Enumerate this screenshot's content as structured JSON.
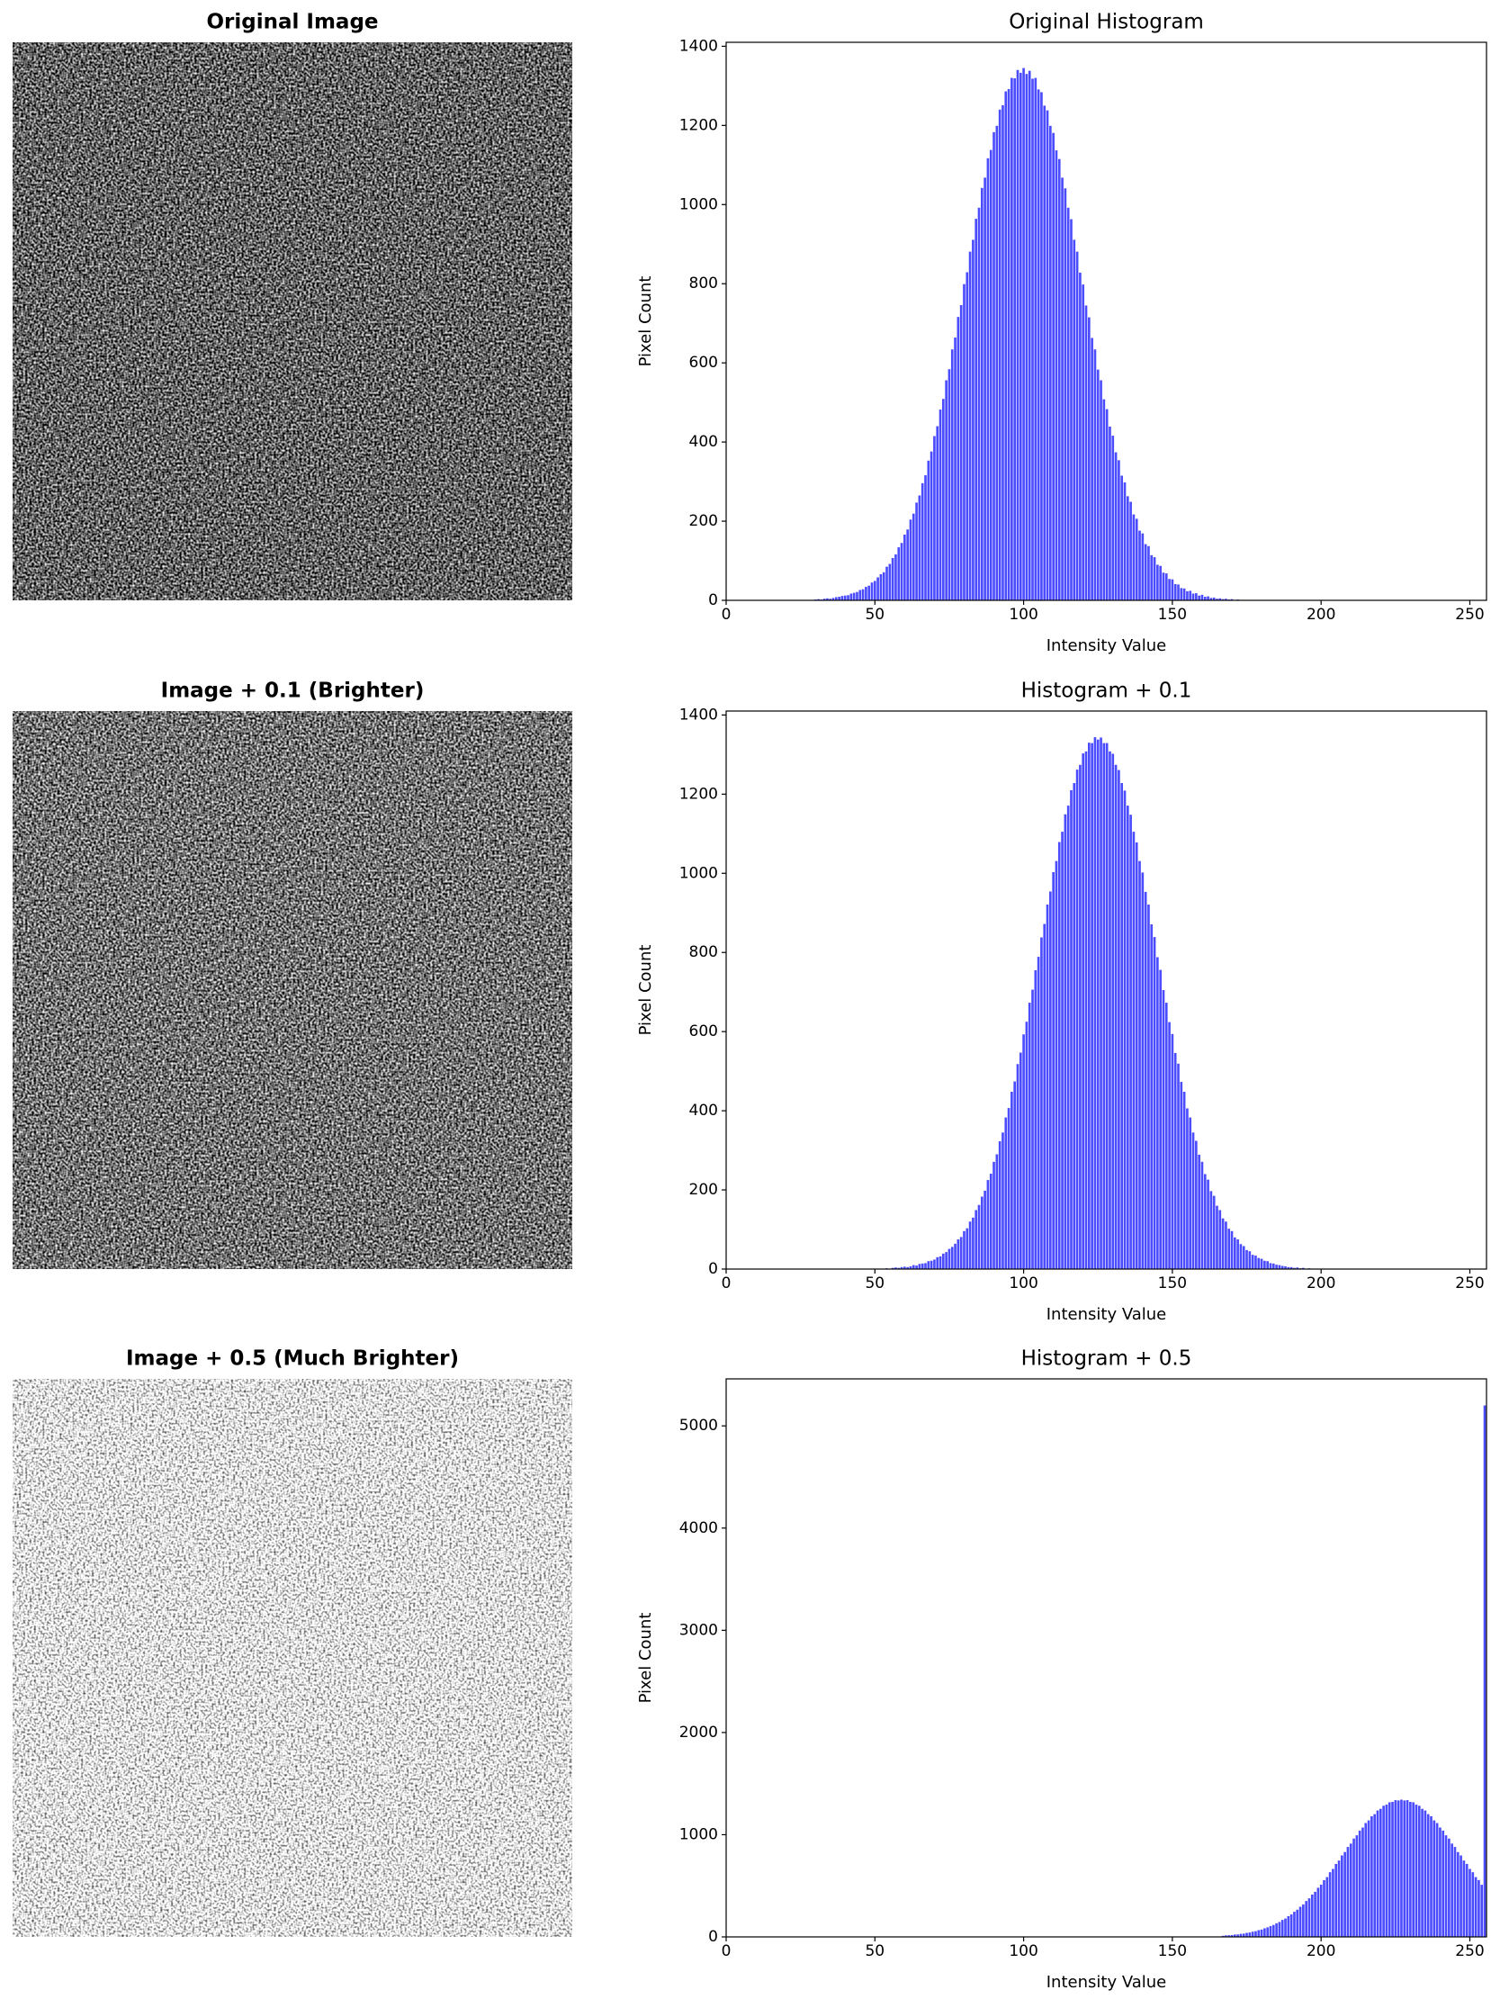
{
  "images": [
    {
      "title": "Original Image"
    },
    {
      "title": "Image + 0.1 (Brighter)"
    },
    {
      "title": "Image + 0.5 (Much Brighter)"
    }
  ],
  "chart_data": [
    {
      "type": "bar",
      "title": "Original Histogram",
      "xlabel": "Intensity Value",
      "ylabel": "Pixel Count",
      "color": "#4c4cff",
      "xlim": [
        0,
        255.6
      ],
      "xticks": [
        0,
        50,
        100,
        150,
        200,
        250
      ],
      "ylim": [
        0,
        1410
      ],
      "yticks": [
        0,
        200,
        400,
        600,
        800,
        1000,
        1200,
        1400
      ],
      "x": [
        28,
        29,
        30,
        31,
        32,
        33,
        34,
        35,
        36,
        37,
        38,
        39,
        40,
        41,
        42,
        43,
        44,
        45,
        46,
        47,
        48,
        49,
        50,
        51,
        52,
        53,
        54,
        55,
        56,
        57,
        58,
        59,
        60,
        61,
        62,
        63,
        64,
        65,
        66,
        67,
        68,
        69,
        70,
        71,
        72,
        73,
        74,
        75,
        76,
        77,
        78,
        79,
        80,
        81,
        82,
        83,
        84,
        85,
        86,
        87,
        88,
        89,
        90,
        91,
        92,
        93,
        94,
        95,
        96,
        97,
        98,
        99,
        100,
        101,
        102,
        103,
        104,
        105,
        106,
        107,
        108,
        109,
        110,
        111,
        112,
        113,
        114,
        115,
        116,
        117,
        118,
        119,
        120,
        121,
        122,
        123,
        124,
        125,
        126,
        127,
        128,
        129,
        130,
        131,
        132,
        133,
        134,
        135,
        136,
        137,
        138,
        139,
        140,
        141,
        142,
        143,
        144,
        145,
        146,
        147,
        148,
        149,
        150,
        151,
        152,
        153,
        154,
        155,
        156,
        157,
        158,
        159,
        160,
        161,
        162,
        163,
        164,
        165,
        166,
        167,
        168,
        169,
        170,
        171,
        172
      ],
      "values": [
        1,
        0,
        2,
        3,
        2,
        4,
        5,
        4,
        6,
        8,
        9,
        11,
        12,
        13,
        17,
        19,
        21,
        26,
        28,
        34,
        37,
        45,
        49,
        58,
        66,
        71,
        85,
        92,
        107,
        116,
        134,
        145,
        166,
        179,
        204,
        219,
        247,
        265,
        296,
        316,
        353,
        376,
        415,
        440,
        482,
        509,
        556,
        584,
        634,
        664,
        716,
        746,
        799,
        829,
        881,
        911,
        964,
        992,
        1042,
        1068,
        1117,
        1138,
        1183,
        1199,
        1240,
        1251,
        1286,
        1292,
        1320,
        1319,
        1340,
        1333,
        1345,
        1330,
        1338,
        1318,
        1320,
        1291,
        1284,
        1250,
        1238,
        1199,
        1181,
        1137,
        1115,
        1068,
        1041,
        992,
        963,
        911,
        881,
        828,
        798,
        745,
        715,
        663,
        634,
        583,
        556,
        508,
        483,
        439,
        416,
        374,
        354,
        315,
        298,
        263,
        249,
        217,
        206,
        176,
        169,
        142,
        137,
        114,
        109,
        90,
        87,
        70,
        68,
        54,
        53,
        41,
        40,
        31,
        30,
        23,
        24,
        17,
        18,
        12,
        14,
        9,
        10,
        6,
        7,
        4,
        5,
        3,
        4,
        2,
        3,
        1,
        2
      ]
    },
    {
      "type": "bar",
      "title": "Histogram + 0.1",
      "xlabel": "Intensity Value",
      "ylabel": "Pixel Count",
      "color": "#4c4cff",
      "xlim": [
        0,
        255.6
      ],
      "xticks": [
        0,
        50,
        100,
        150,
        200,
        250
      ],
      "ylim": [
        0,
        1410
      ],
      "yticks": [
        0,
        200,
        400,
        600,
        800,
        1000,
        1200,
        1400
      ],
      "x": [
        53,
        54,
        55,
        56,
        57,
        58,
        59,
        60,
        61,
        62,
        63,
        64,
        65,
        66,
        67,
        68,
        69,
        70,
        71,
        72,
        73,
        74,
        75,
        76,
        77,
        78,
        79,
        80,
        81,
        82,
        83,
        84,
        85,
        86,
        87,
        88,
        89,
        90,
        91,
        92,
        93,
        94,
        95,
        96,
        97,
        98,
        99,
        100,
        101,
        102,
        103,
        104,
        105,
        106,
        107,
        108,
        109,
        110,
        111,
        112,
        113,
        114,
        115,
        116,
        117,
        118,
        119,
        120,
        121,
        122,
        123,
        124,
        125,
        126,
        127,
        128,
        129,
        130,
        131,
        132,
        133,
        134,
        135,
        136,
        137,
        138,
        139,
        140,
        141,
        142,
        143,
        144,
        145,
        146,
        147,
        148,
        149,
        150,
        151,
        152,
        153,
        154,
        155,
        156,
        157,
        158,
        159,
        160,
        161,
        162,
        163,
        164,
        165,
        166,
        167,
        168,
        169,
        170,
        171,
        172,
        173,
        174,
        175,
        176,
        177,
        178,
        179,
        180,
        181,
        182,
        183,
        184,
        185,
        186,
        187,
        188,
        189,
        190,
        191,
        192,
        193,
        194,
        195,
        196,
        197
      ],
      "values": [
        0,
        2,
        1,
        3,
        4,
        3,
        5,
        6,
        5,
        7,
        10,
        9,
        13,
        14,
        15,
        20,
        21,
        24,
        30,
        32,
        39,
        43,
        51,
        56,
        64,
        75,
        81,
        96,
        103,
        120,
        130,
        149,
        162,
        183,
        198,
        225,
        241,
        271,
        290,
        323,
        345,
        383,
        407,
        448,
        474,
        518,
        547,
        593,
        625,
        673,
        706,
        755,
        789,
        838,
        872,
        921,
        954,
        1003,
        1031,
        1079,
        1105,
        1149,
        1171,
        1210,
        1228,
        1262,
        1274,
        1303,
        1308,
        1330,
        1329,
        1344,
        1338,
        1343,
        1329,
        1329,
        1308,
        1302,
        1274,
        1261,
        1228,
        1209,
        1171,
        1148,
        1105,
        1078,
        1031,
        1002,
        953,
        921,
        871,
        839,
        788,
        756,
        705,
        673,
        624,
        594,
        546,
        519,
        473,
        448,
        406,
        383,
        345,
        324,
        289,
        271,
        240,
        226,
        197,
        185,
        160,
        149,
        128,
        120,
        102,
        96,
        80,
        75,
        63,
        58,
        48,
        45,
        36,
        34,
        28,
        26,
        21,
        20,
        15,
        14,
        11,
        10,
        8,
        7,
        5,
        5,
        3,
        4,
        2,
        3,
        1,
        2,
        0
      ]
    },
    {
      "type": "bar",
      "title": "Histogram + 0.5",
      "xlabel": "Intensity Value",
      "ylabel": "Pixel Count",
      "color": "#4c4cff",
      "xlim": [
        0,
        255.6
      ],
      "xticks": [
        0,
        50,
        100,
        150,
        200,
        250
      ],
      "ylim": [
        0,
        5460
      ],
      "yticks": [
        0,
        1000,
        2000,
        3000,
        4000,
        5000
      ],
      "x": [
        167,
        168,
        169,
        170,
        171,
        172,
        173,
        174,
        175,
        176,
        177,
        178,
        179,
        180,
        181,
        182,
        183,
        184,
        185,
        186,
        187,
        188,
        189,
        190,
        191,
        192,
        193,
        194,
        195,
        196,
        197,
        198,
        199,
        200,
        201,
        202,
        203,
        204,
        205,
        206,
        207,
        208,
        209,
        210,
        211,
        212,
        213,
        214,
        215,
        216,
        217,
        218,
        219,
        220,
        221,
        222,
        223,
        224,
        225,
        226,
        227,
        228,
        229,
        230,
        231,
        232,
        233,
        234,
        235,
        236,
        237,
        238,
        239,
        240,
        241,
        242,
        243,
        244,
        245,
        246,
        247,
        248,
        249,
        250,
        251,
        252,
        253,
        254,
        255
      ],
      "values": [
        11,
        15,
        16,
        18,
        23,
        24,
        30,
        32,
        39,
        43,
        51,
        56,
        66,
        72,
        84,
        93,
        106,
        117,
        133,
        146,
        166,
        180,
        203,
        220,
        246,
        266,
        295,
        318,
        351,
        377,
        414,
        441,
        481,
        511,
        555,
        585,
        633,
        665,
        714,
        747,
        797,
        830,
        880,
        913,
        962,
        994,
        1040,
        1070,
        1114,
        1140,
        1180,
        1201,
        1237,
        1253,
        1283,
        1294,
        1317,
        1321,
        1338,
        1335,
        1343,
        1335,
        1338,
        1321,
        1317,
        1294,
        1283,
        1253,
        1237,
        1201,
        1180,
        1140,
        1114,
        1070,
        1040,
        994,
        962,
        913,
        880,
        830,
        797,
        747,
        714,
        665,
        633,
        585,
        556,
        510,
        5200
      ]
    }
  ]
}
